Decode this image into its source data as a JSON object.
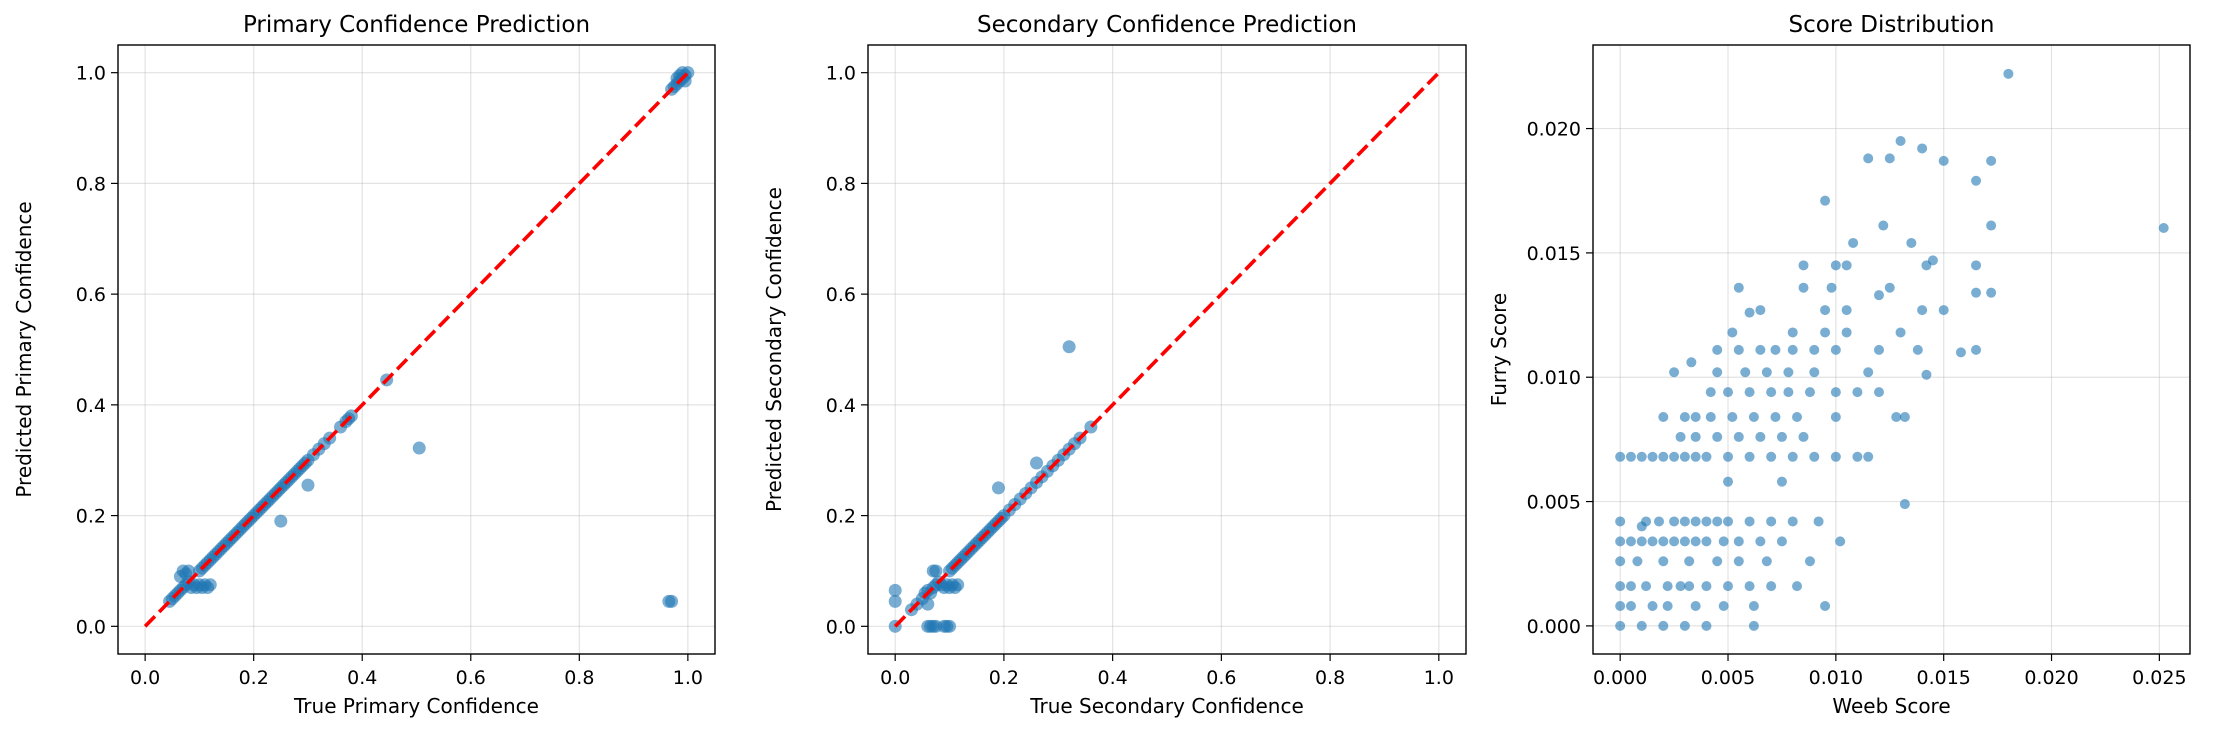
{
  "chart_data": [
    {
      "type": "scatter",
      "title": "Primary Confidence Prediction",
      "xlabel": "True Primary Confidence",
      "ylabel": "Predicted Primary Confidence",
      "xlim": [
        -0.05,
        1.05
      ],
      "ylim": [
        -0.05,
        1.05
      ],
      "xticks": [
        "0.0",
        "0.2",
        "0.4",
        "0.6",
        "0.8",
        "1.0"
      ],
      "yticks": [
        "0.0",
        "0.2",
        "0.4",
        "0.6",
        "0.8",
        "1.0"
      ],
      "grid": true,
      "color": "#1f77b4",
      "reference_line": {
        "x": [
          0,
          1
        ],
        "y": [
          0,
          1
        ],
        "color": "#ff0000",
        "style": "dashed"
      },
      "points": [
        [
          0.045,
          0.045
        ],
        [
          0.05,
          0.05
        ],
        [
          0.055,
          0.055
        ],
        [
          0.06,
          0.06
        ],
        [
          0.065,
          0.065
        ],
        [
          0.07,
          0.07
        ],
        [
          0.075,
          0.075
        ],
        [
          0.08,
          0.08
        ],
        [
          0.065,
          0.09
        ],
        [
          0.07,
          0.1
        ],
        [
          0.075,
          0.095
        ],
        [
          0.08,
          0.1
        ],
        [
          0.085,
          0.07
        ],
        [
          0.09,
          0.075
        ],
        [
          0.095,
          0.07
        ],
        [
          0.1,
          0.075
        ],
        [
          0.105,
          0.07
        ],
        [
          0.11,
          0.075
        ],
        [
          0.115,
          0.07
        ],
        [
          0.12,
          0.075
        ],
        [
          0.1,
          0.1
        ],
        [
          0.105,
          0.105
        ],
        [
          0.11,
          0.11
        ],
        [
          0.115,
          0.115
        ],
        [
          0.12,
          0.12
        ],
        [
          0.125,
          0.125
        ],
        [
          0.13,
          0.13
        ],
        [
          0.135,
          0.135
        ],
        [
          0.14,
          0.14
        ],
        [
          0.145,
          0.145
        ],
        [
          0.15,
          0.15
        ],
        [
          0.155,
          0.155
        ],
        [
          0.16,
          0.16
        ],
        [
          0.165,
          0.165
        ],
        [
          0.17,
          0.17
        ],
        [
          0.175,
          0.175
        ],
        [
          0.18,
          0.18
        ],
        [
          0.185,
          0.185
        ],
        [
          0.19,
          0.19
        ],
        [
          0.195,
          0.195
        ],
        [
          0.2,
          0.2
        ],
        [
          0.205,
          0.205
        ],
        [
          0.21,
          0.21
        ],
        [
          0.215,
          0.215
        ],
        [
          0.22,
          0.22
        ],
        [
          0.225,
          0.225
        ],
        [
          0.23,
          0.23
        ],
        [
          0.235,
          0.235
        ],
        [
          0.24,
          0.24
        ],
        [
          0.245,
          0.245
        ],
        [
          0.25,
          0.25
        ],
        [
          0.255,
          0.255
        ],
        [
          0.26,
          0.26
        ],
        [
          0.265,
          0.265
        ],
        [
          0.27,
          0.27
        ],
        [
          0.275,
          0.275
        ],
        [
          0.28,
          0.28
        ],
        [
          0.285,
          0.285
        ],
        [
          0.29,
          0.29
        ],
        [
          0.295,
          0.295
        ],
        [
          0.3,
          0.3
        ],
        [
          0.31,
          0.31
        ],
        [
          0.32,
          0.32
        ],
        [
          0.33,
          0.33
        ],
        [
          0.34,
          0.34
        ],
        [
          0.36,
          0.36
        ],
        [
          0.37,
          0.37
        ],
        [
          0.375,
          0.375
        ],
        [
          0.38,
          0.38
        ],
        [
          0.445,
          0.445
        ],
        [
          0.25,
          0.19
        ],
        [
          0.3,
          0.255
        ],
        [
          0.505,
          0.322
        ],
        [
          0.965,
          0.045
        ],
        [
          0.97,
          0.045
        ],
        [
          0.97,
          0.97
        ],
        [
          0.975,
          0.975
        ],
        [
          0.98,
          0.98
        ],
        [
          0.985,
          0.985
        ],
        [
          0.99,
          0.99
        ],
        [
          0.995,
          0.995
        ],
        [
          1.0,
          1.0
        ],
        [
          0.99,
          1.0
        ],
        [
          0.985,
          0.995
        ],
        [
          0.98,
          0.99
        ],
        [
          0.995,
          0.985
        ]
      ]
    },
    {
      "type": "scatter",
      "title": "Secondary Confidence Prediction",
      "xlabel": "True Secondary Confidence",
      "ylabel": "Predicted Secondary Confidence",
      "xlim": [
        -0.05,
        1.05
      ],
      "ylim": [
        -0.05,
        1.05
      ],
      "xticks": [
        "0.0",
        "0.2",
        "0.4",
        "0.6",
        "0.8",
        "1.0"
      ],
      "yticks": [
        "0.0",
        "0.2",
        "0.4",
        "0.6",
        "0.8",
        "1.0"
      ],
      "grid": true,
      "color": "#1f77b4",
      "reference_line": {
        "x": [
          0,
          1
        ],
        "y": [
          0,
          1
        ],
        "color": "#ff0000",
        "style": "dashed"
      },
      "points": [
        [
          0.0,
          0.0
        ],
        [
          0.0,
          0.045
        ],
        [
          0.0,
          0.065
        ],
        [
          0.03,
          0.03
        ],
        [
          0.04,
          0.04
        ],
        [
          0.05,
          0.05
        ],
        [
          0.055,
          0.06
        ],
        [
          0.06,
          0.065
        ],
        [
          0.065,
          0.06
        ],
        [
          0.07,
          0.07
        ],
        [
          0.075,
          0.075
        ],
        [
          0.08,
          0.08
        ],
        [
          0.06,
          0.04
        ],
        [
          0.07,
          0.1
        ],
        [
          0.075,
          0.1
        ],
        [
          0.085,
          0.075
        ],
        [
          0.09,
          0.07
        ],
        [
          0.095,
          0.075
        ],
        [
          0.1,
          0.07
        ],
        [
          0.105,
          0.075
        ],
        [
          0.11,
          0.07
        ],
        [
          0.115,
          0.075
        ],
        [
          0.06,
          0.0
        ],
        [
          0.065,
          0.0
        ],
        [
          0.07,
          0.0
        ],
        [
          0.075,
          0.0
        ],
        [
          0.09,
          0.0
        ],
        [
          0.095,
          0.0
        ],
        [
          0.1,
          0.0
        ],
        [
          0.1,
          0.1
        ],
        [
          0.105,
          0.105
        ],
        [
          0.11,
          0.11
        ],
        [
          0.115,
          0.115
        ],
        [
          0.12,
          0.12
        ],
        [
          0.125,
          0.125
        ],
        [
          0.13,
          0.13
        ],
        [
          0.135,
          0.135
        ],
        [
          0.14,
          0.14
        ],
        [
          0.145,
          0.145
        ],
        [
          0.15,
          0.15
        ],
        [
          0.155,
          0.155
        ],
        [
          0.16,
          0.16
        ],
        [
          0.165,
          0.165
        ],
        [
          0.17,
          0.17
        ],
        [
          0.175,
          0.175
        ],
        [
          0.18,
          0.18
        ],
        [
          0.185,
          0.185
        ],
        [
          0.19,
          0.19
        ],
        [
          0.195,
          0.195
        ],
        [
          0.2,
          0.2
        ],
        [
          0.21,
          0.21
        ],
        [
          0.22,
          0.22
        ],
        [
          0.23,
          0.23
        ],
        [
          0.24,
          0.24
        ],
        [
          0.25,
          0.25
        ],
        [
          0.26,
          0.26
        ],
        [
          0.27,
          0.27
        ],
        [
          0.28,
          0.28
        ],
        [
          0.29,
          0.29
        ],
        [
          0.3,
          0.3
        ],
        [
          0.31,
          0.31
        ],
        [
          0.32,
          0.32
        ],
        [
          0.33,
          0.33
        ],
        [
          0.34,
          0.34
        ],
        [
          0.36,
          0.36
        ],
        [
          0.19,
          0.25
        ],
        [
          0.26,
          0.295
        ],
        [
          0.32,
          0.505
        ]
      ]
    },
    {
      "type": "scatter",
      "title": "Score Distribution",
      "xlabel": "Weeb Score",
      "ylabel": "Furry Score",
      "xlim": [
        -0.00126,
        0.02642
      ],
      "ylim": [
        -0.00113,
        0.02336
      ],
      "xticks": [
        "0.000",
        "0.005",
        "0.010",
        "0.015",
        "0.020",
        "0.025"
      ],
      "yticks": [
        "0.000",
        "0.005",
        "0.010",
        "0.015",
        "0.020"
      ],
      "grid": true,
      "color": "#1f77b4",
      "points": [
        [
          0.0,
          0.0
        ],
        [
          0.0,
          0.0008
        ],
        [
          0.0,
          0.0016
        ],
        [
          0.0,
          0.0026
        ],
        [
          0.0,
          0.0034
        ],
        [
          0.0,
          0.0042
        ],
        [
          0.0,
          0.0068
        ],
        [
          0.0005,
          0.0034
        ],
        [
          0.0005,
          0.0068
        ],
        [
          0.0005,
          0.0008
        ],
        [
          0.0005,
          0.0016
        ],
        [
          0.0008,
          0.0026
        ],
        [
          0.001,
          0.0034
        ],
        [
          0.001,
          0.0068
        ],
        [
          0.001,
          0.004
        ],
        [
          0.001,
          0.0
        ],
        [
          0.0012,
          0.0016
        ],
        [
          0.0012,
          0.0042
        ],
        [
          0.0015,
          0.0068
        ],
        [
          0.0015,
          0.0034
        ],
        [
          0.0015,
          0.0008
        ],
        [
          0.0018,
          0.0042
        ],
        [
          0.002,
          0.0068
        ],
        [
          0.002,
          0.0034
        ],
        [
          0.002,
          0.0
        ],
        [
          0.002,
          0.0084
        ],
        [
          0.002,
          0.0026
        ],
        [
          0.0022,
          0.0016
        ],
        [
          0.0022,
          0.0008
        ],
        [
          0.0025,
          0.0042
        ],
        [
          0.0025,
          0.0068
        ],
        [
          0.0025,
          0.0034
        ],
        [
          0.0025,
          0.0102
        ],
        [
          0.0028,
          0.0076
        ],
        [
          0.0028,
          0.0016
        ],
        [
          0.003,
          0.0
        ],
        [
          0.003,
          0.0034
        ],
        [
          0.003,
          0.0084
        ],
        [
          0.003,
          0.0042
        ],
        [
          0.003,
          0.0068
        ],
        [
          0.0032,
          0.0026
        ],
        [
          0.0032,
          0.0016
        ],
        [
          0.0033,
          0.0106
        ],
        [
          0.0035,
          0.0068
        ],
        [
          0.0035,
          0.0034
        ],
        [
          0.0035,
          0.0008
        ],
        [
          0.0035,
          0.0042
        ],
        [
          0.0035,
          0.0084
        ],
        [
          0.0035,
          0.0076
        ],
        [
          0.004,
          0.0042
        ],
        [
          0.004,
          0.0034
        ],
        [
          0.004,
          0.0068
        ],
        [
          0.004,
          0.0016
        ],
        [
          0.004,
          0.0
        ],
        [
          0.0042,
          0.0094
        ],
        [
          0.0042,
          0.0084
        ],
        [
          0.0045,
          0.0026
        ],
        [
          0.0045,
          0.0042
        ],
        [
          0.0045,
          0.0076
        ],
        [
          0.0045,
          0.0102
        ],
        [
          0.0045,
          0.0111
        ],
        [
          0.0048,
          0.0008
        ],
        [
          0.0048,
          0.0034
        ],
        [
          0.005,
          0.0042
        ],
        [
          0.005,
          0.0068
        ],
        [
          0.005,
          0.0016
        ],
        [
          0.005,
          0.0058
        ],
        [
          0.005,
          0.0094
        ],
        [
          0.0052,
          0.0084
        ],
        [
          0.0052,
          0.0118
        ],
        [
          0.0055,
          0.0034
        ],
        [
          0.0055,
          0.0076
        ],
        [
          0.0055,
          0.0111
        ],
        [
          0.0055,
          0.0026
        ],
        [
          0.0055,
          0.0136
        ],
        [
          0.0058,
          0.0102
        ],
        [
          0.006,
          0.0042
        ],
        [
          0.006,
          0.0068
        ],
        [
          0.006,
          0.0016
        ],
        [
          0.006,
          0.0094
        ],
        [
          0.006,
          0.0126
        ],
        [
          0.0062,
          0.0084
        ],
        [
          0.0062,
          0.0008
        ],
        [
          0.0062,
          0.0
        ],
        [
          0.0065,
          0.0034
        ],
        [
          0.0065,
          0.0076
        ],
        [
          0.0065,
          0.0111
        ],
        [
          0.0065,
          0.0127
        ],
        [
          0.0068,
          0.0026
        ],
        [
          0.0068,
          0.0102
        ],
        [
          0.007,
          0.0042
        ],
        [
          0.007,
          0.0068
        ],
        [
          0.007,
          0.0094
        ],
        [
          0.007,
          0.0016
        ],
        [
          0.0072,
          0.0084
        ],
        [
          0.0072,
          0.0111
        ],
        [
          0.0075,
          0.0058
        ],
        [
          0.0075,
          0.0076
        ],
        [
          0.0075,
          0.0034
        ],
        [
          0.0078,
          0.0102
        ],
        [
          0.0078,
          0.0094
        ],
        [
          0.008,
          0.0042
        ],
        [
          0.008,
          0.0068
        ],
        [
          0.008,
          0.0111
        ],
        [
          0.008,
          0.0118
        ],
        [
          0.0082,
          0.0084
        ],
        [
          0.0082,
          0.0016
        ],
        [
          0.0085,
          0.0076
        ],
        [
          0.0085,
          0.0136
        ],
        [
          0.0085,
          0.0145
        ],
        [
          0.0088,
          0.0094
        ],
        [
          0.0088,
          0.0026
        ],
        [
          0.009,
          0.0102
        ],
        [
          0.009,
          0.0068
        ],
        [
          0.009,
          0.0111
        ],
        [
          0.0092,
          0.0042
        ],
        [
          0.0095,
          0.0118
        ],
        [
          0.0095,
          0.0127
        ],
        [
          0.0095,
          0.0171
        ],
        [
          0.0095,
          0.0008
        ],
        [
          0.0098,
          0.0136
        ],
        [
          0.01,
          0.0094
        ],
        [
          0.01,
          0.0111
        ],
        [
          0.01,
          0.0145
        ],
        [
          0.01,
          0.0068
        ],
        [
          0.01,
          0.0084
        ],
        [
          0.0102,
          0.0034
        ],
        [
          0.0105,
          0.0118
        ],
        [
          0.0105,
          0.0145
        ],
        [
          0.0105,
          0.0127
        ],
        [
          0.0108,
          0.0154
        ],
        [
          0.011,
          0.0068
        ],
        [
          0.011,
          0.0094
        ],
        [
          0.0115,
          0.0068
        ],
        [
          0.0115,
          0.0102
        ],
        [
          0.0115,
          0.0188
        ],
        [
          0.012,
          0.0111
        ],
        [
          0.012,
          0.0094
        ],
        [
          0.012,
          0.0133
        ],
        [
          0.0122,
          0.0161
        ],
        [
          0.0125,
          0.0188
        ],
        [
          0.0125,
          0.0136
        ],
        [
          0.0128,
          0.0084
        ],
        [
          0.013,
          0.0118
        ],
        [
          0.013,
          0.0195
        ],
        [
          0.0132,
          0.0049
        ],
        [
          0.0132,
          0.0084
        ],
        [
          0.0135,
          0.0154
        ],
        [
          0.0138,
          0.0111
        ],
        [
          0.014,
          0.0192
        ],
        [
          0.014,
          0.0127
        ],
        [
          0.0142,
          0.0101
        ],
        [
          0.0142,
          0.0145
        ],
        [
          0.0145,
          0.0147
        ],
        [
          0.015,
          0.0187
        ],
        [
          0.015,
          0.0127
        ],
        [
          0.0158,
          0.011
        ],
        [
          0.0165,
          0.0179
        ],
        [
          0.0165,
          0.0111
        ],
        [
          0.0165,
          0.0145
        ],
        [
          0.0165,
          0.0134
        ],
        [
          0.0172,
          0.0187
        ],
        [
          0.0172,
          0.0161
        ],
        [
          0.0172,
          0.0134
        ],
        [
          0.018,
          0.0222
        ],
        [
          0.0252,
          0.016
        ]
      ]
    }
  ]
}
